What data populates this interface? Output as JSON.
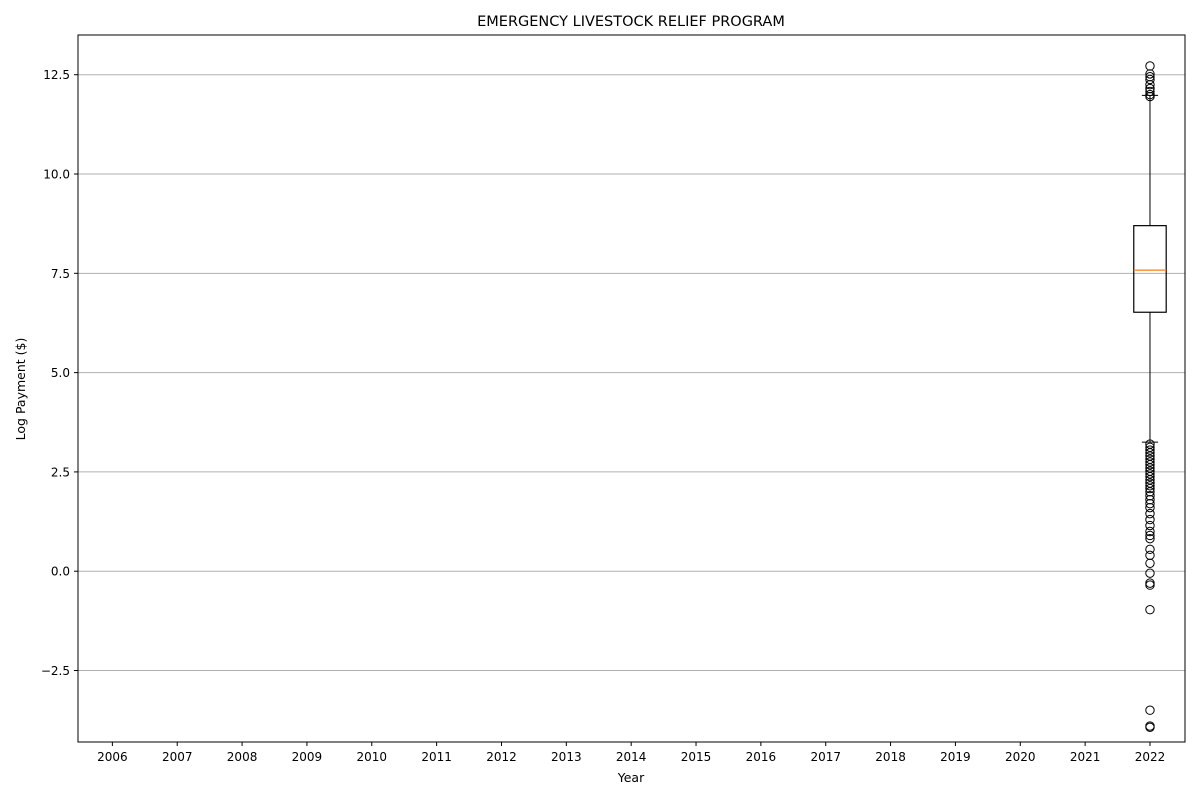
{
  "chart_data": {
    "type": "box",
    "title": "EMERGENCY LIVESTOCK RELIEF PROGRAM",
    "xlabel": "Year",
    "ylabel": "Log Payment ($)",
    "categories": [
      "2006",
      "2007",
      "2008",
      "2009",
      "2010",
      "2011",
      "2012",
      "2013",
      "2014",
      "2015",
      "2016",
      "2017",
      "2018",
      "2019",
      "2020",
      "2021",
      "2022"
    ],
    "ylim": [
      -4.3,
      13.5
    ],
    "yticks": [
      -2.5,
      0.0,
      2.5,
      5.0,
      7.5,
      10.0,
      12.5
    ],
    "ytick_labels": [
      "−2.5",
      "0.0",
      "2.5",
      "5.0",
      "7.5",
      "10.0",
      "12.5"
    ],
    "grid": {
      "y": true,
      "x": false
    },
    "boxes": [
      {
        "category": "2022",
        "whisker_low": 3.25,
        "q1": 6.52,
        "median": 7.58,
        "q3": 8.7,
        "whisker_high": 11.98,
        "outliers": [
          12.72,
          12.52,
          12.45,
          12.38,
          12.25,
          12.15,
          12.08,
          12.0,
          11.95,
          3.2,
          3.12,
          3.05,
          2.98,
          2.9,
          2.82,
          2.75,
          2.68,
          2.6,
          2.52,
          2.45,
          2.38,
          2.3,
          2.22,
          2.15,
          2.08,
          2.0,
          1.9,
          1.8,
          1.7,
          1.6,
          1.45,
          1.3,
          1.15,
          1.0,
          0.9,
          0.82,
          0.55,
          0.4,
          0.2,
          -0.05,
          -0.3,
          -0.35,
          -0.97,
          -3.5,
          -3.9,
          -3.93
        ]
      }
    ],
    "colors": {
      "median": "#ff7f0e",
      "box": "#000000",
      "grid": "#b0b0b0"
    }
  }
}
